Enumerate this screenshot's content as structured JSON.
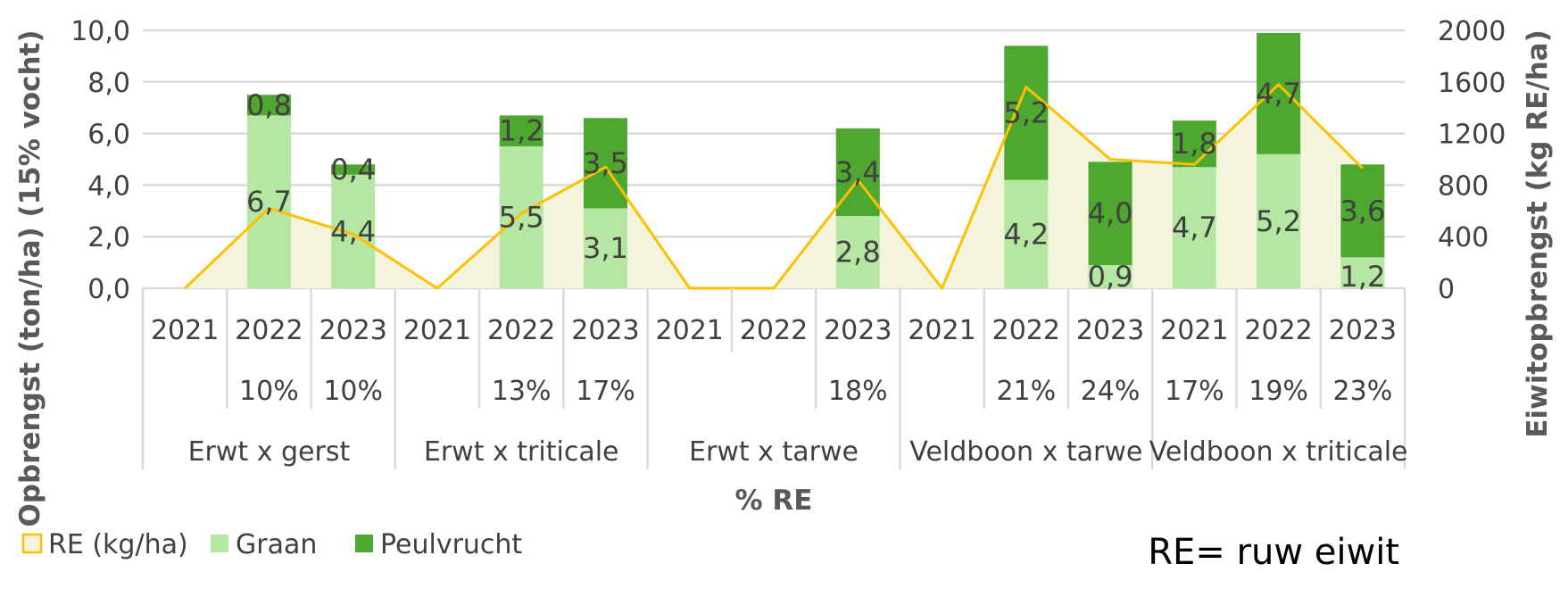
{
  "chart_data": {
    "type": "bar",
    "stacked": true,
    "xlabel": "% RE",
    "ylabel": "Opbrengst (ton/ha) (15% vocht)",
    "y2label": "Eiwitopbrengst (kg RE/ha)",
    "ylim": [
      0,
      10
    ],
    "y2lim": [
      0,
      2000
    ],
    "yticks": [
      "0,0",
      "2,0",
      "4,0",
      "6,0",
      "8,0",
      "10,0"
    ],
    "y2ticks": [
      "0",
      "400",
      "800",
      "1200",
      "1600",
      "2000"
    ],
    "grid": true,
    "legend_position": "bottom-left",
    "groups": [
      {
        "name": "Erwt x gerst",
        "years": [
          "2021",
          "2022",
          "2023"
        ],
        "pct": [
          "",
          "10%",
          "10%"
        ]
      },
      {
        "name": "Erwt x triticale",
        "years": [
          "2021",
          "2022",
          "2023"
        ],
        "pct": [
          "",
          "13%",
          "17%"
        ]
      },
      {
        "name": "Erwt x tarwe",
        "years": [
          "2021",
          "2022",
          "2023"
        ],
        "pct": [
          "",
          "",
          "18%"
        ]
      },
      {
        "name": "Veldboon x tarwe",
        "years": [
          "2021",
          "2022",
          "2023"
        ],
        "pct": [
          "",
          "21%",
          "24%"
        ]
      },
      {
        "name": "Veldboon x triticale",
        "years": [
          "2021",
          "2022",
          "2023"
        ],
        "pct": [
          "17%",
          "19%",
          "23%"
        ]
      }
    ],
    "series": [
      {
        "name": "Graan",
        "kind": "bar",
        "axis": "left",
        "color": "#b5e6a2",
        "values": [
          null,
          6.7,
          4.4,
          null,
          5.5,
          3.1,
          null,
          null,
          2.8,
          null,
          4.2,
          0.9,
          4.7,
          5.2,
          1.2
        ],
        "labels": [
          "",
          "6,7",
          "4,4",
          "",
          "5,5",
          "3,1",
          "",
          "",
          "2,8",
          "",
          "4,2",
          "0,9",
          "4,7",
          "5,2",
          "1,2"
        ]
      },
      {
        "name": "Peulvrucht",
        "kind": "bar",
        "axis": "left",
        "color": "#4ea72e",
        "values": [
          null,
          0.8,
          0.4,
          null,
          1.2,
          3.5,
          null,
          null,
          3.4,
          null,
          5.2,
          4.0,
          1.8,
          4.7,
          3.6
        ],
        "labels": [
          "",
          "0,8",
          "0,4",
          "",
          "1,2",
          "3,5",
          "",
          "",
          "3,4",
          "",
          "5,2",
          "4,0",
          "1,8",
          "4,7",
          "3,6"
        ]
      },
      {
        "name": "RE (kg/ha)",
        "kind": "area",
        "axis": "right",
        "color": "#ffc000",
        "fill": "#f4f3dc",
        "values": [
          0,
          620,
          420,
          0,
          580,
          940,
          0,
          0,
          840,
          0,
          1560,
          1000,
          960,
          1580,
          930
        ]
      }
    ],
    "annotation": "RE= ruw eiwit"
  }
}
